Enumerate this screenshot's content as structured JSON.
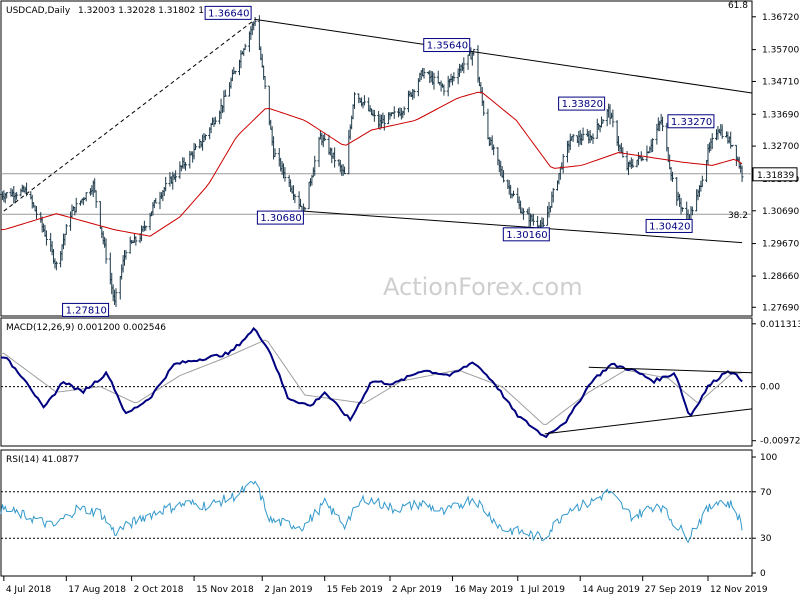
{
  "header": {
    "symbol": "USDCAD,Daily",
    "ohlc": "1.32003 1.32028 1.31802 1.31839",
    "macd": "MACD(12,26,9) 0.001200 0.002546",
    "rsi": "RSI(14) 41.0877"
  },
  "watermark": "ActionForex.com",
  "fib_labels": {
    "fib_618": "61.8",
    "fib_382": "38.2"
  },
  "current_price_label": "1.31839",
  "colors": {
    "price_bars": "#1e3a4a",
    "moving_average": "#cc0000",
    "macd_line": "#000080",
    "signal_line": "#a0a0a0",
    "rsi_line": "#3399cc",
    "trendlines": "#000000",
    "label_box_border": "#000080"
  },
  "chart_data": [
    {
      "type": "line",
      "name": "price",
      "x_tick_labels": [
        "4 Jul 2018",
        "17 Aug 2018",
        "2 Oct 2018",
        "15 Nov 2018",
        "2 Jan 2019",
        "15 Feb 2019",
        "2 Apr 2019",
        "16 May 2019",
        "1 Jul 2019",
        "14 Aug 2019",
        "27 Sep 2019",
        "12 Nov 2019"
      ],
      "y_tick_labels": [
        "1.36720",
        "1.35700",
        "1.34710",
        "1.33690",
        "1.32700",
        "1.31680",
        "1.30690",
        "1.29670",
        "1.28660",
        "1.27690"
      ],
      "ylim": [
        1.2745,
        1.3718
      ],
      "price_path": [
        {
          "date": "2018-07-04",
          "value": 1.312
        },
        {
          "date": "2018-07-20",
          "value": 1.313
        },
        {
          "date": "2018-08-01",
          "value": 1.301
        },
        {
          "date": "2018-08-10",
          "value": 1.29
        },
        {
          "date": "2018-08-20",
          "value": 1.306
        },
        {
          "date": "2018-09-05",
          "value": 1.315
        },
        {
          "date": "2018-09-20",
          "value": 1.2781
        },
        {
          "date": "2018-09-28",
          "value": 1.295
        },
        {
          "date": "2018-10-08",
          "value": 1.299
        },
        {
          "date": "2018-10-20",
          "value": 1.311
        },
        {
          "date": "2018-11-05",
          "value": 1.32
        },
        {
          "date": "2018-11-20",
          "value": 1.328
        },
        {
          "date": "2018-12-05",
          "value": 1.34
        },
        {
          "date": "2018-12-20",
          "value": 1.358
        },
        {
          "date": "2018-12-28",
          "value": 1.3664
        },
        {
          "date": "2019-01-04",
          "value": 1.345
        },
        {
          "date": "2019-01-10",
          "value": 1.325
        },
        {
          "date": "2019-01-31",
          "value": 1.3068
        },
        {
          "date": "2019-02-12",
          "value": 1.33
        },
        {
          "date": "2019-03-01",
          "value": 1.318
        },
        {
          "date": "2019-03-08",
          "value": 1.344
        },
        {
          "date": "2019-03-25",
          "value": 1.334
        },
        {
          "date": "2019-04-10",
          "value": 1.338
        },
        {
          "date": "2019-04-25",
          "value": 1.35
        },
        {
          "date": "2019-05-10",
          "value": 1.345
        },
        {
          "date": "2019-05-31",
          "value": 1.3564
        },
        {
          "date": "2019-06-10",
          "value": 1.33
        },
        {
          "date": "2019-06-20",
          "value": 1.318
        },
        {
          "date": "2019-07-05",
          "value": 1.306
        },
        {
          "date": "2019-07-19",
          "value": 1.3016
        },
        {
          "date": "2019-07-31",
          "value": 1.32
        },
        {
          "date": "2019-08-07",
          "value": 1.329
        },
        {
          "date": "2019-08-22",
          "value": 1.33
        },
        {
          "date": "2019-09-03",
          "value": 1.3382
        },
        {
          "date": "2019-09-15",
          "value": 1.32
        },
        {
          "date": "2019-09-30",
          "value": 1.325
        },
        {
          "date": "2019-10-10",
          "value": 1.335
        },
        {
          "date": "2019-10-20",
          "value": 1.312
        },
        {
          "date": "2019-10-29",
          "value": 1.3042
        },
        {
          "date": "2019-11-05",
          "value": 1.312
        },
        {
          "date": "2019-11-12",
          "value": 1.325
        },
        {
          "date": "2019-11-19",
          "value": 1.3327
        },
        {
          "date": "2019-11-30",
          "value": 1.327
        },
        {
          "date": "2019-12-06",
          "value": 1.3184
        }
      ],
      "moving_average_path": [
        {
          "date": "2018-07-04",
          "value": 1.301
        },
        {
          "date": "2018-08-10",
          "value": 1.306
        },
        {
          "date": "2018-09-20",
          "value": 1.301
        },
        {
          "date": "2018-10-15",
          "value": 1.299
        },
        {
          "date": "2018-11-05",
          "value": 1.305
        },
        {
          "date": "2018-11-25",
          "value": 1.315
        },
        {
          "date": "2018-12-15",
          "value": 1.33
        },
        {
          "date": "2019-01-05",
          "value": 1.339
        },
        {
          "date": "2019-02-01",
          "value": 1.335
        },
        {
          "date": "2019-03-01",
          "value": 1.327
        },
        {
          "date": "2019-03-20",
          "value": 1.332
        },
        {
          "date": "2019-04-20",
          "value": 1.335
        },
        {
          "date": "2019-05-20",
          "value": 1.342
        },
        {
          "date": "2019-06-05",
          "value": 1.344
        },
        {
          "date": "2019-06-30",
          "value": 1.335
        },
        {
          "date": "2019-07-25",
          "value": 1.32
        },
        {
          "date": "2019-08-15",
          "value": 1.321
        },
        {
          "date": "2019-09-10",
          "value": 1.325
        },
        {
          "date": "2019-10-10",
          "value": 1.323
        },
        {
          "date": "2019-10-25",
          "value": 1.322
        },
        {
          "date": "2019-11-15",
          "value": 1.321
        },
        {
          "date": "2019-12-01",
          "value": 1.323
        },
        {
          "date": "2019-12-06",
          "value": 1.3215
        }
      ],
      "point_labels": [
        {
          "text": "1.36640",
          "date": "2018-12-28",
          "value": 1.3664
        },
        {
          "text": "1.27810",
          "date": "2018-09-20",
          "value": 1.2781
        },
        {
          "text": "1.30680",
          "date": "2019-01-31",
          "value": 1.3068
        },
        {
          "text": "1.35640",
          "date": "2019-05-31",
          "value": 1.3564
        },
        {
          "text": "1.30160",
          "date": "2019-07-19",
          "value": 1.3016
        },
        {
          "text": "1.33820",
          "date": "2019-09-03",
          "value": 1.3382
        },
        {
          "text": "1.33270",
          "date": "2019-11-19",
          "value": 1.3327
        },
        {
          "text": "1.30420",
          "date": "2019-10-29",
          "value": 1.3042
        }
      ],
      "trendlines": [
        {
          "from": {
            "date": "2018-12-28",
            "value": 1.3664
          },
          "to": {
            "date": "2019-12-13",
            "value": 1.3435
          }
        },
        {
          "from": {
            "date": "2019-01-31",
            "value": 1.3068
          },
          "to": {
            "date": "2019-12-06",
            "value": 1.297
          }
        }
      ],
      "fib_projection": {
        "from": {
          "date": "2018-07-04",
          "value": 1.3068
        },
        "to": {
          "date": "2018-12-28",
          "value": 1.3664
        }
      },
      "fib_38_2_level": 1.3058,
      "last_price": 1.31839
    },
    {
      "type": "line",
      "name": "MACD(12,26,9)",
      "y_tick_labels": [
        "0.011313",
        "0.00",
        "-0.009729"
      ],
      "ylim": [
        -0.0105,
        0.012
      ],
      "macd_path": [
        {
          "date": "2018-07-04",
          "value": 0.0055
        },
        {
          "date": "2018-07-20",
          "value": 0.001
        },
        {
          "date": "2018-08-01",
          "value": -0.004
        },
        {
          "date": "2018-08-15",
          "value": 0.001
        },
        {
          "date": "2018-08-28",
          "value": -0.001
        },
        {
          "date": "2018-09-15",
          "value": 0.0025
        },
        {
          "date": "2018-09-28",
          "value": -0.005
        },
        {
          "date": "2018-10-15",
          "value": -0.002
        },
        {
          "date": "2018-11-01",
          "value": 0.004
        },
        {
          "date": "2018-11-20",
          "value": 0.005
        },
        {
          "date": "2018-12-10",
          "value": 0.006
        },
        {
          "date": "2018-12-28",
          "value": 0.0105
        },
        {
          "date": "2019-01-08",
          "value": 0.006
        },
        {
          "date": "2019-01-20",
          "value": -0.002
        },
        {
          "date": "2019-02-05",
          "value": -0.0035
        },
        {
          "date": "2019-02-15",
          "value": -0.001
        },
        {
          "date": "2019-03-05",
          "value": -0.006
        },
        {
          "date": "2019-03-20",
          "value": 0.001
        },
        {
          "date": "2019-04-05",
          "value": 0.0005
        },
        {
          "date": "2019-04-25",
          "value": 0.003
        },
        {
          "date": "2019-05-15",
          "value": 0.002
        },
        {
          "date": "2019-05-31",
          "value": 0.0045
        },
        {
          "date": "2019-06-15",
          "value": 0.0005
        },
        {
          "date": "2019-06-30",
          "value": -0.005
        },
        {
          "date": "2019-07-20",
          "value": -0.009
        },
        {
          "date": "2019-08-05",
          "value": -0.006
        },
        {
          "date": "2019-08-22",
          "value": 0.001
        },
        {
          "date": "2019-09-05",
          "value": 0.004
        },
        {
          "date": "2019-09-20",
          "value": 0.003
        },
        {
          "date": "2019-10-05",
          "value": 0.001
        },
        {
          "date": "2019-10-20",
          "value": 0.0025
        },
        {
          "date": "2019-10-30",
          "value": -0.0055
        },
        {
          "date": "2019-11-12",
          "value": 0.0
        },
        {
          "date": "2019-11-26",
          "value": 0.003
        },
        {
          "date": "2019-12-06",
          "value": 0.0012
        }
      ],
      "signal_path": [
        {
          "date": "2018-07-04",
          "value": 0.006
        },
        {
          "date": "2018-08-10",
          "value": -0.001
        },
        {
          "date": "2018-09-10",
          "value": 0.0
        },
        {
          "date": "2018-10-05",
          "value": -0.003
        },
        {
          "date": "2018-11-05",
          "value": 0.002
        },
        {
          "date": "2018-12-05",
          "value": 0.005
        },
        {
          "date": "2019-01-05",
          "value": 0.0085
        },
        {
          "date": "2019-02-01",
          "value": -0.0015
        },
        {
          "date": "2019-03-15",
          "value": -0.003
        },
        {
          "date": "2019-04-10",
          "value": 0.001
        },
        {
          "date": "2019-05-20",
          "value": 0.003
        },
        {
          "date": "2019-06-20",
          "value": 0.0
        },
        {
          "date": "2019-07-20",
          "value": -0.007
        },
        {
          "date": "2019-08-20",
          "value": -0.001
        },
        {
          "date": "2019-09-15",
          "value": 0.003
        },
        {
          "date": "2019-10-15",
          "value": 0.0015
        },
        {
          "date": "2019-11-05",
          "value": -0.003
        },
        {
          "date": "2019-11-28",
          "value": 0.0022
        },
        {
          "date": "2019-12-06",
          "value": 0.0025
        }
      ],
      "trendlines": [
        {
          "from": {
            "date": "2019-08-20",
            "value": 0.0035
          },
          "to": {
            "date": "2019-12-13",
            "value": 0.0025
          }
        },
        {
          "from": {
            "date": "2019-07-20",
            "value": -0.0085
          },
          "to": {
            "date": "2019-12-13",
            "value": -0.004
          }
        }
      ],
      "zero_line": 0.0
    },
    {
      "type": "line",
      "name": "RSI(14)",
      "y_tick_labels": [
        "100",
        "70",
        "30",
        "0"
      ],
      "ylim": [
        0,
        100
      ],
      "guide_levels": [
        70,
        30
      ],
      "rsi_path": [
        {
          "date": "2018-07-04",
          "value": 55
        },
        {
          "date": "2018-07-25",
          "value": 47
        },
        {
          "date": "2018-08-08",
          "value": 40
        },
        {
          "date": "2018-08-25",
          "value": 56
        },
        {
          "date": "2018-09-10",
          "value": 52
        },
        {
          "date": "2018-09-20",
          "value": 35
        },
        {
          "date": "2018-10-10",
          "value": 48
        },
        {
          "date": "2018-10-25",
          "value": 55
        },
        {
          "date": "2018-11-10",
          "value": 60
        },
        {
          "date": "2018-11-25",
          "value": 58
        },
        {
          "date": "2018-12-15",
          "value": 67
        },
        {
          "date": "2018-12-28",
          "value": 78
        },
        {
          "date": "2019-01-08",
          "value": 45
        },
        {
          "date": "2019-01-31",
          "value": 40
        },
        {
          "date": "2019-02-15",
          "value": 60
        },
        {
          "date": "2019-03-01",
          "value": 42
        },
        {
          "date": "2019-03-15",
          "value": 65
        },
        {
          "date": "2019-04-05",
          "value": 55
        },
        {
          "date": "2019-04-25",
          "value": 60
        },
        {
          "date": "2019-05-10",
          "value": 52
        },
        {
          "date": "2019-05-31",
          "value": 65
        },
        {
          "date": "2019-06-20",
          "value": 38
        },
        {
          "date": "2019-07-05",
          "value": 35
        },
        {
          "date": "2019-07-19",
          "value": 30
        },
        {
          "date": "2019-08-05",
          "value": 55
        },
        {
          "date": "2019-08-20",
          "value": 60
        },
        {
          "date": "2019-09-03",
          "value": 70
        },
        {
          "date": "2019-09-20",
          "value": 48
        },
        {
          "date": "2019-10-08",
          "value": 60
        },
        {
          "date": "2019-10-20",
          "value": 42
        },
        {
          "date": "2019-10-29",
          "value": 31
        },
        {
          "date": "2019-11-10",
          "value": 52
        },
        {
          "date": "2019-11-19",
          "value": 63
        },
        {
          "date": "2019-11-30",
          "value": 58
        },
        {
          "date": "2019-12-06",
          "value": 41
        }
      ],
      "last_value": 41.0877
    }
  ]
}
